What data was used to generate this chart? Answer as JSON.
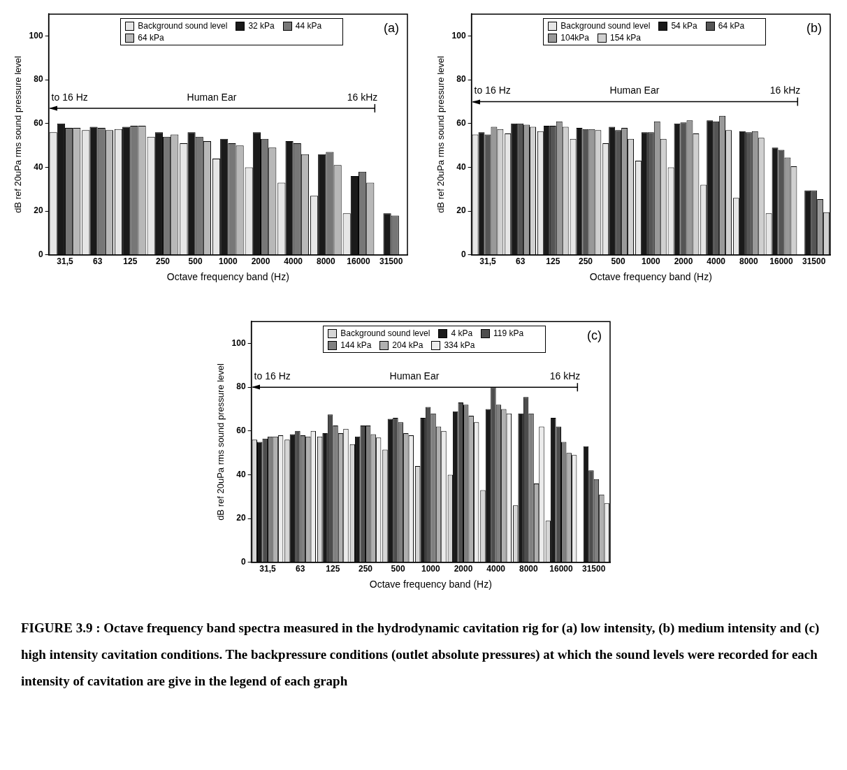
{
  "chart_data": [
    {
      "type": "bar",
      "title": "(a)",
      "xlabel": "Octave frequency band (Hz)",
      "ylabel": "dB ref 20uPa rms sound pressure level",
      "categories": [
        "31,5",
        "63",
        "125",
        "250",
        "500",
        "1000",
        "2000",
        "4000",
        "8000",
        "16000",
        "31500"
      ],
      "ylim": [
        0,
        110
      ],
      "yticks": [
        0,
        20,
        40,
        60,
        80,
        100
      ],
      "legend": "top",
      "annotations": [
        "to 16 Hz",
        "16 kHz"
      ],
      "ref_lines": [
        {
          "axis": "y",
          "value": 67,
          "label": "Human Ear"
        }
      ],
      "series": [
        {
          "name": "Background sound level",
          "color": "#e6e6e6",
          "values": [
            56,
            57,
            57.5,
            54,
            51,
            44,
            40,
            33,
            27,
            19,
            null
          ]
        },
        {
          "name": "32 kPa",
          "color": "#1a1a1a",
          "values": [
            60,
            58.5,
            58.5,
            56,
            56,
            53,
            56,
            52,
            46,
            36,
            19
          ]
        },
        {
          "name": "44 kPa",
          "color": "#777777",
          "values": [
            58,
            58,
            59,
            54,
            54,
            51,
            53,
            51,
            47,
            38,
            18
          ]
        },
        {
          "name": "64 kPa",
          "color": "#b8b8b8",
          "values": [
            58,
            57,
            59,
            55,
            52,
            50,
            49,
            46,
            41,
            33,
            null
          ]
        }
      ]
    },
    {
      "type": "bar",
      "title": "(b)",
      "xlabel": "Octave frequency band (Hz)",
      "ylabel": "dB ref 20uPa rms sound pressure level",
      "categories": [
        "31,5",
        "63",
        "125",
        "250",
        "500",
        "1000",
        "2000",
        "4000",
        "8000",
        "16000",
        "31500"
      ],
      "ylim": [
        0,
        110
      ],
      "yticks": [
        0,
        20,
        40,
        60,
        80,
        100
      ],
      "legend": "top",
      "annotations": [
        "to 16 Hz",
        "16 kHz"
      ],
      "ref_lines": [
        {
          "axis": "y",
          "value": 70,
          "label": "Human Ear"
        }
      ],
      "series": [
        {
          "name": "Background sound level",
          "color": "#e6e6e6",
          "values": [
            55,
            55.5,
            56.5,
            53,
            51,
            43,
            40,
            32,
            26,
            19,
            null
          ]
        },
        {
          "name": "54 kPa",
          "color": "#1a1a1a",
          "values": [
            56,
            60,
            59,
            58,
            58.5,
            56,
            60,
            61.5,
            56.5,
            49,
            29.5
          ]
        },
        {
          "name": "64 kPa",
          "color": "#555555",
          "values": [
            55,
            60,
            59,
            57.5,
            57,
            56,
            60.5,
            61,
            56,
            48,
            29.5
          ]
        },
        {
          "name": "104kPa",
          "color": "#999999",
          "values": [
            58.5,
            59.5,
            61,
            57.5,
            58,
            61,
            61.5,
            63.5,
            56.5,
            44.5,
            25.5
          ]
        },
        {
          "name": "154 kPa",
          "color": "#d0d0d0",
          "values": [
            57.5,
            58.5,
            58.5,
            57,
            53,
            53,
            55.5,
            57,
            53.5,
            40.5,
            19.5
          ]
        }
      ]
    },
    {
      "type": "bar",
      "title": "(c)",
      "xlabel": "Octave frequency band (Hz)",
      "ylabel": "dB ref 20uPa rms sound pressure level",
      "categories": [
        "31,5",
        "63",
        "125",
        "250",
        "500",
        "1000",
        "2000",
        "4000",
        "8000",
        "16000",
        "31500"
      ],
      "ylim": [
        0,
        110
      ],
      "yticks": [
        0,
        20,
        40,
        60,
        80,
        100
      ],
      "legend": "top",
      "ref_lines": [
        {
          "axis": "y",
          "value": 80,
          "label": "Human Ear"
        }
      ],
      "annotations": [
        "to 16 Hz",
        "16 kHz",
        "FIGURE 3.9 : Octave frequency band spectra measured in the hydrodynamic cavitation rig for (a) low intensity, (b) medium intensity and (c) high intensity cavitation conditions.  The backpressure conditions (outlet absolute pressures) at which the sound levels were recorded for each intensity of cavitation are give in the legend of each graph"
      ],
      "series": [
        {
          "name": "Background sound level",
          "color": "#d6d6d6",
          "values": [
            56,
            56,
            57.5,
            54,
            51.5,
            44,
            40,
            33,
            26,
            19,
            null
          ]
        },
        {
          "name": "4 kPa",
          "color": "#1a1a1a",
          "values": [
            55,
            58.5,
            59,
            57.5,
            65.5,
            66,
            69,
            70,
            68,
            66,
            53
          ]
        },
        {
          "name": "119 kPa",
          "color": "#4d4d4d",
          "values": [
            56.5,
            60,
            67.5,
            62.5,
            66,
            71,
            73,
            80,
            75.5,
            62,
            42
          ]
        },
        {
          "name": "144 kPa",
          "color": "#808080",
          "values": [
            57.5,
            58,
            62.5,
            62.5,
            64,
            68,
            72,
            72,
            68,
            55,
            38
          ]
        },
        {
          "name": "204 kPa",
          "color": "#b0b0b0",
          "values": [
            57.5,
            57.5,
            59,
            58.5,
            59,
            62,
            67,
            70,
            36,
            50,
            31
          ]
        },
        {
          "name": "334 kPa",
          "color": "#ececec",
          "values": [
            58,
            60,
            61,
            57,
            58,
            60,
            64,
            68,
            62,
            49,
            27
          ]
        }
      ]
    }
  ]
}
